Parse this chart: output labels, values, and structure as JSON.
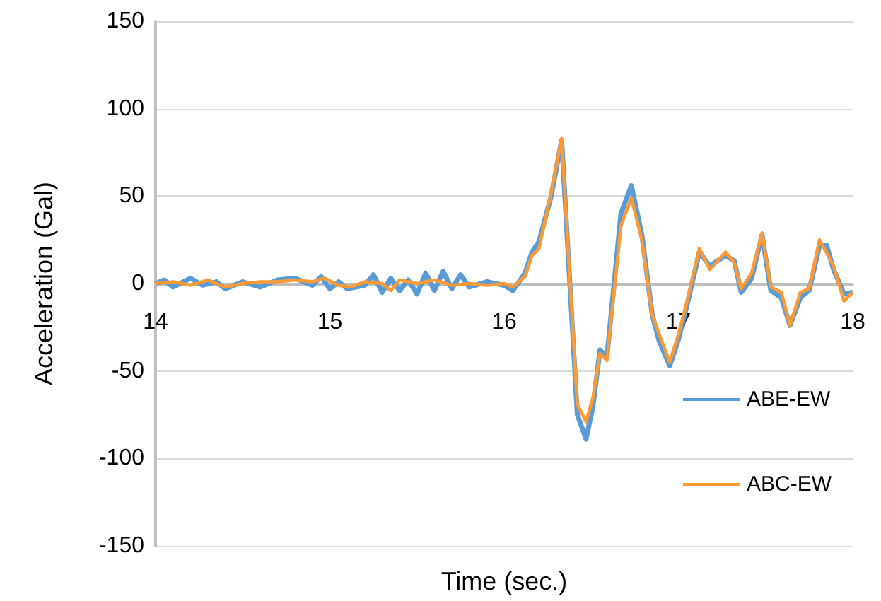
{
  "chart_data": {
    "type": "line",
    "xlabel": "Time (sec.)",
    "ylabel": "Acceleration (Gal)",
    "xlim": [
      14,
      18
    ],
    "xticks": [
      14,
      15,
      16,
      17,
      18
    ],
    "ylim": [
      -150,
      150
    ],
    "yticks": [
      -150,
      -100,
      -50,
      0,
      50,
      100,
      150
    ],
    "grid": "y",
    "legend": "bottom right",
    "marker": "none",
    "line_style": "solid",
    "series": [
      {
        "name": "ABE-EW",
        "color": "#5b9bd5",
        "x": [
          14,
          14.05,
          14.1,
          14.2,
          14.27,
          14.35,
          14.4,
          14.5,
          14.6,
          14.7,
          14.8,
          14.9,
          14.95,
          15.0,
          15.05,
          15.1,
          15.2,
          15.25,
          15.3,
          15.35,
          15.4,
          15.45,
          15.5,
          15.55,
          15.6,
          15.65,
          15.7,
          15.75,
          15.8,
          15.9,
          16.0,
          16.05,
          16.12,
          16.16,
          16.2,
          16.27,
          16.33,
          16.38,
          16.42,
          16.47,
          16.51,
          16.55,
          16.59,
          16.67,
          16.73,
          16.79,
          16.85,
          16.89,
          16.95,
          17.0,
          17.05,
          17.12,
          17.18,
          17.27,
          17.32,
          17.36,
          17.42,
          17.48,
          17.53,
          17.59,
          17.64,
          17.7,
          17.75,
          17.81,
          17.85,
          17.89,
          17.95,
          18.0
        ],
        "values": [
          0,
          2,
          -2,
          3,
          -1,
          1,
          -3,
          1,
          -2,
          2,
          3,
          -1,
          4,
          -3,
          1,
          -3,
          -1,
          5,
          -5,
          3,
          -4,
          2,
          -6,
          6,
          -4,
          7,
          -3,
          5,
          -2,
          1,
          -1,
          -4,
          6,
          18,
          24,
          50,
          82,
          -5,
          -75,
          -89,
          -70,
          -38,
          -42,
          40,
          56,
          28,
          -18,
          -33,
          -47,
          -32,
          -12,
          18,
          10,
          16,
          13,
          -5,
          3,
          28,
          -4,
          -8,
          -24,
          -8,
          -4,
          22,
          22,
          8,
          -6,
          -5
        ]
      },
      {
        "name": "ABC-EW",
        "color": "#ff9933",
        "x": [
          14,
          14.1,
          14.2,
          14.3,
          14.4,
          14.5,
          14.6,
          14.7,
          14.8,
          14.9,
          14.97,
          15.05,
          15.12,
          15.2,
          15.3,
          15.35,
          15.4,
          15.5,
          15.6,
          15.7,
          15.8,
          15.9,
          16.0,
          16.05,
          16.12,
          16.16,
          16.2,
          16.27,
          16.33,
          16.38,
          16.42,
          16.47,
          16.51,
          16.55,
          16.59,
          16.67,
          16.73,
          16.79,
          16.85,
          16.89,
          16.95,
          17.0,
          17.05,
          17.12,
          17.18,
          17.27,
          17.32,
          17.36,
          17.42,
          17.48,
          17.53,
          17.59,
          17.64,
          17.7,
          17.75,
          17.81,
          17.89,
          17.95,
          18.0
        ],
        "values": [
          0,
          1,
          -1,
          2,
          -2,
          0,
          1,
          1,
          2,
          1,
          3,
          -1,
          -2,
          1,
          0,
          -4,
          2,
          0,
          2,
          -1,
          0,
          -1,
          0,
          -2,
          4,
          16,
          20,
          52,
          83,
          -2,
          -69,
          -79,
          -65,
          -40,
          -44,
          33,
          49,
          25,
          -18,
          -29,
          -45,
          -29,
          -10,
          20,
          8,
          18,
          12,
          -3,
          6,
          29,
          -2,
          -5,
          -24,
          -5,
          -3,
          25,
          10,
          -10,
          -5
        ]
      }
    ]
  }
}
